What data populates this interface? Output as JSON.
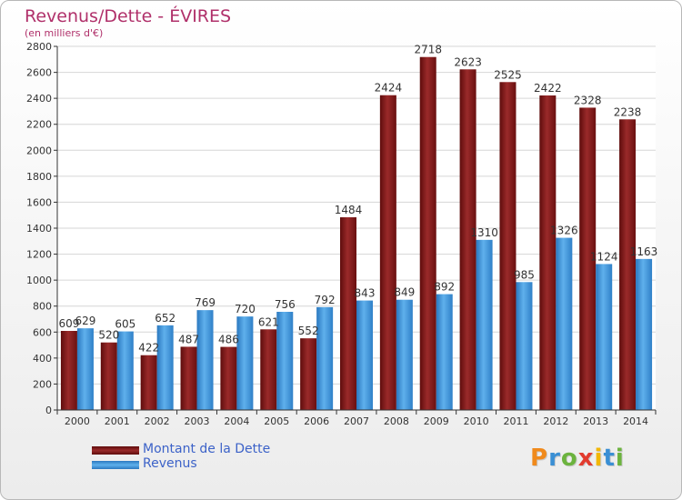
{
  "title": "Revenus/Dette - ÉVIRES",
  "subtitle": "(en milliers d'€)",
  "chart_data": {
    "type": "bar",
    "categories": [
      "2000",
      "2001",
      "2002",
      "2003",
      "2004",
      "2005",
      "2006",
      "2007",
      "2008",
      "2009",
      "2010",
      "2011",
      "2012",
      "2013",
      "2014"
    ],
    "series": [
      {
        "name": "Montant de la Dette",
        "color": "#8b1a1a",
        "values": [
          609,
          520,
          422,
          487,
          486,
          621,
          552,
          1484,
          2424,
          2718,
          2623,
          2525,
          2422,
          2328,
          2238
        ]
      },
      {
        "name": "Revenus",
        "color": "#3a92d8",
        "values": [
          629,
          605,
          652,
          769,
          720,
          756,
          792,
          843,
          849,
          892,
          1310,
          985,
          1326,
          1124,
          1163
        ]
      }
    ],
    "ylim": [
      0,
      2800
    ],
    "yticks": [
      0,
      200,
      400,
      600,
      800,
      1000,
      1200,
      1400,
      1600,
      1800,
      2000,
      2200,
      2400,
      2600,
      2800
    ],
    "grid": true,
    "legend_position": "bottom-left"
  },
  "logo": {
    "letters": [
      "P",
      "r",
      "o",
      "x",
      "i",
      "t",
      "i"
    ],
    "colors": [
      "#f08a1c",
      "#3a8fd4",
      "#6cb33e",
      "#e23b2e",
      "#f2b705",
      "#3a8fd4",
      "#6cb33e"
    ]
  }
}
